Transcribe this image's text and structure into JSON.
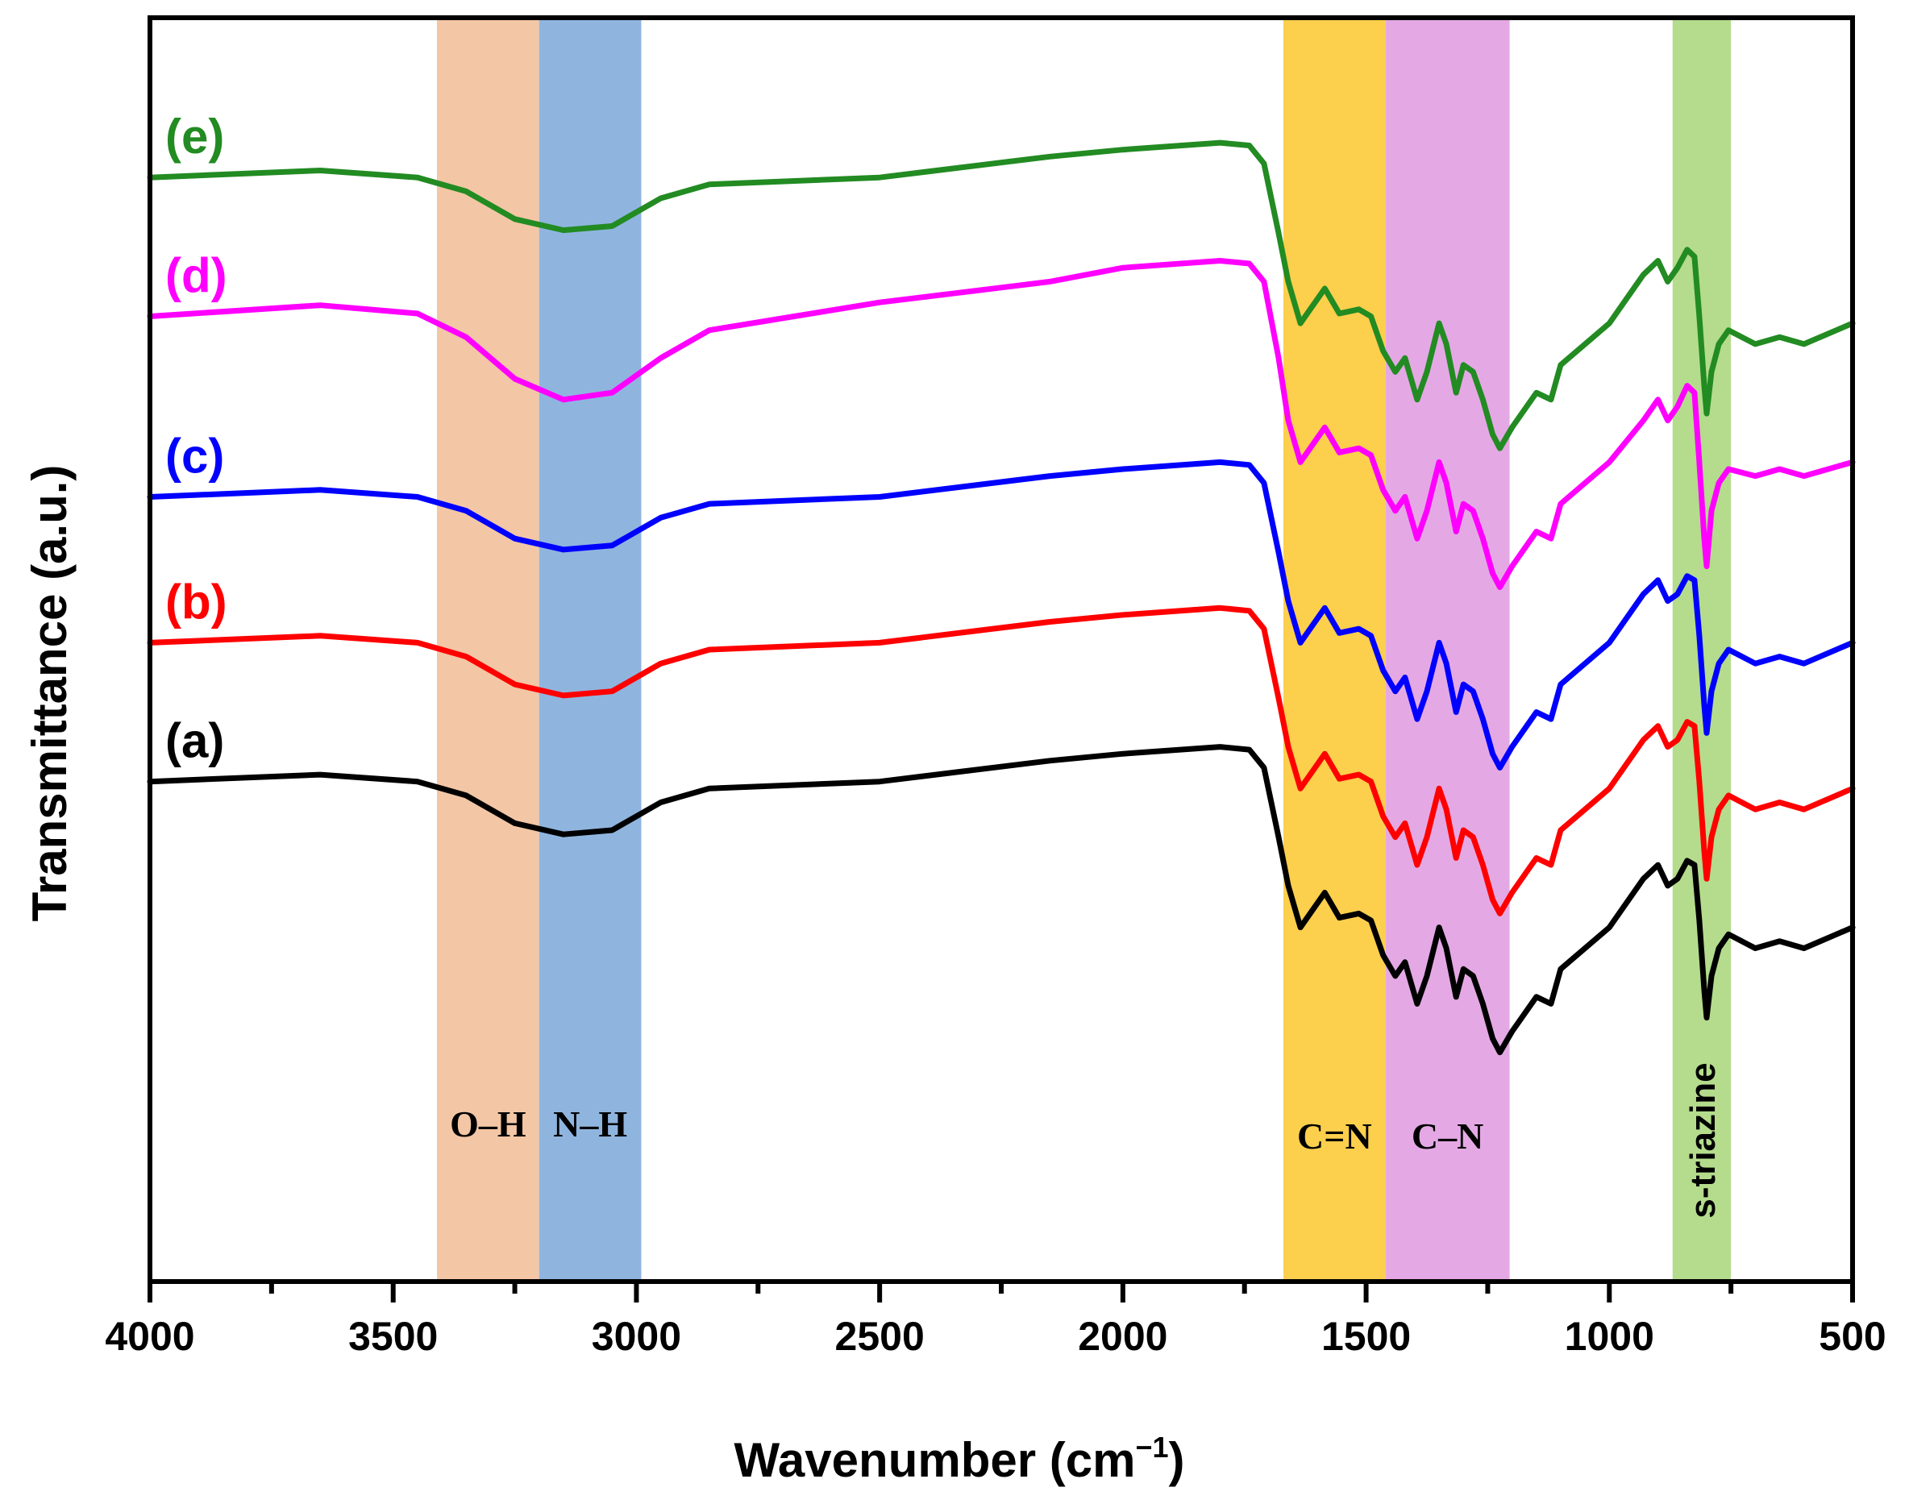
{
  "chart_data": {
    "type": "line",
    "xlabel": "Wavenumber (cm",
    "xlabel_sup": "−1",
    "xlabel_end": ")",
    "ylabel": "Transmittance (a.u.)",
    "xlim": [
      4000,
      500
    ],
    "x_reversed": true,
    "ylim": [
      0,
      9.1
    ],
    "x_ticks": [
      4000,
      3500,
      3000,
      2500,
      2000,
      1500,
      1000,
      500
    ],
    "x_tick_labels": [
      "4000",
      "3500",
      "3000",
      "2500",
      "2000",
      "1500",
      "1000",
      "500"
    ],
    "y_tick_labels_shown": false,
    "grid": false,
    "legend": "none",
    "bands": [
      {
        "label": "O–H",
        "range": [
          3410,
          3200
        ],
        "color": "#f3c6a5"
      },
      {
        "label": "N–H",
        "range": [
          3200,
          2990
        ],
        "color": "#8fb5df"
      },
      {
        "label": "C=N",
        "range": [
          1670,
          1460
        ],
        "color": "#fccf4d"
      },
      {
        "label": "C–N",
        "range": [
          1460,
          1205
        ],
        "color": "#e4a9e4"
      },
      {
        "label": "s-triazine",
        "range": [
          870,
          750
        ],
        "color": "#b4dc8c"
      }
    ],
    "series": [
      {
        "name": "(a)",
        "color": "#000000",
        "offset": 0.0,
        "points": [
          [
            4000,
            3.6
          ],
          [
            3650,
            3.65
          ],
          [
            3450,
            3.6
          ],
          [
            3350,
            3.5
          ],
          [
            3250,
            3.3
          ],
          [
            3150,
            3.22
          ],
          [
            3050,
            3.25
          ],
          [
            2950,
            3.45
          ],
          [
            2850,
            3.55
          ],
          [
            2500,
            3.6
          ],
          [
            2150,
            3.75
          ],
          [
            2000,
            3.8
          ],
          [
            1800,
            3.85
          ],
          [
            1740,
            3.83
          ],
          [
            1710,
            3.7
          ],
          [
            1680,
            3.2
          ],
          [
            1660,
            2.85
          ],
          [
            1635,
            2.55
          ],
          [
            1605,
            2.7
          ],
          [
            1585,
            2.8
          ],
          [
            1555,
            2.62
          ],
          [
            1515,
            2.65
          ],
          [
            1490,
            2.6
          ],
          [
            1465,
            2.35
          ],
          [
            1440,
            2.2
          ],
          [
            1420,
            2.3
          ],
          [
            1395,
            2.0
          ],
          [
            1375,
            2.2
          ],
          [
            1350,
            2.55
          ],
          [
            1335,
            2.4
          ],
          [
            1315,
            2.05
          ],
          [
            1300,
            2.25
          ],
          [
            1280,
            2.2
          ],
          [
            1260,
            2.0
          ],
          [
            1240,
            1.75
          ],
          [
            1225,
            1.65
          ],
          [
            1200,
            1.8
          ],
          [
            1150,
            2.05
          ],
          [
            1120,
            2.0
          ],
          [
            1100,
            2.25
          ],
          [
            1000,
            2.55
          ],
          [
            930,
            2.9
          ],
          [
            900,
            3.0
          ],
          [
            880,
            2.85
          ],
          [
            860,
            2.9
          ],
          [
            840,
            3.03
          ],
          [
            825,
            3.0
          ],
          [
            815,
            2.6
          ],
          [
            805,
            2.1
          ],
          [
            800,
            1.9
          ],
          [
            790,
            2.2
          ],
          [
            775,
            2.4
          ],
          [
            755,
            2.5
          ],
          [
            700,
            2.4
          ],
          [
            650,
            2.45
          ],
          [
            600,
            2.4
          ],
          [
            500,
            2.55
          ]
        ]
      },
      {
        "name": "(b)",
        "color": "#ff0000",
        "offset": 1.0,
        "points": [
          [
            4000,
            3.6
          ],
          [
            3650,
            3.65
          ],
          [
            3450,
            3.6
          ],
          [
            3350,
            3.5
          ],
          [
            3250,
            3.3
          ],
          [
            3150,
            3.22
          ],
          [
            3050,
            3.25
          ],
          [
            2950,
            3.45
          ],
          [
            2850,
            3.55
          ],
          [
            2500,
            3.6
          ],
          [
            2150,
            3.75
          ],
          [
            2000,
            3.8
          ],
          [
            1800,
            3.85
          ],
          [
            1740,
            3.83
          ],
          [
            1710,
            3.7
          ],
          [
            1680,
            3.2
          ],
          [
            1660,
            2.85
          ],
          [
            1635,
            2.55
          ],
          [
            1605,
            2.7
          ],
          [
            1585,
            2.8
          ],
          [
            1555,
            2.62
          ],
          [
            1515,
            2.65
          ],
          [
            1490,
            2.6
          ],
          [
            1465,
            2.35
          ],
          [
            1440,
            2.2
          ],
          [
            1420,
            2.3
          ],
          [
            1395,
            2.0
          ],
          [
            1375,
            2.2
          ],
          [
            1350,
            2.55
          ],
          [
            1335,
            2.4
          ],
          [
            1315,
            2.05
          ],
          [
            1300,
            2.25
          ],
          [
            1280,
            2.2
          ],
          [
            1260,
            2.0
          ],
          [
            1240,
            1.75
          ],
          [
            1225,
            1.65
          ],
          [
            1200,
            1.8
          ],
          [
            1150,
            2.05
          ],
          [
            1120,
            2.0
          ],
          [
            1100,
            2.25
          ],
          [
            1000,
            2.55
          ],
          [
            930,
            2.9
          ],
          [
            900,
            3.0
          ],
          [
            880,
            2.85
          ],
          [
            860,
            2.9
          ],
          [
            840,
            3.03
          ],
          [
            825,
            3.0
          ],
          [
            815,
            2.6
          ],
          [
            805,
            2.1
          ],
          [
            800,
            1.9
          ],
          [
            790,
            2.2
          ],
          [
            775,
            2.4
          ],
          [
            755,
            2.5
          ],
          [
            700,
            2.4
          ],
          [
            650,
            2.45
          ],
          [
            600,
            2.4
          ],
          [
            500,
            2.55
          ]
        ]
      },
      {
        "name": "(c)",
        "color": "#0000ff",
        "offset": 2.05,
        "points": [
          [
            4000,
            3.6
          ],
          [
            3650,
            3.65
          ],
          [
            3450,
            3.6
          ],
          [
            3350,
            3.5
          ],
          [
            3250,
            3.3
          ],
          [
            3150,
            3.22
          ],
          [
            3050,
            3.25
          ],
          [
            2950,
            3.45
          ],
          [
            2850,
            3.55
          ],
          [
            2500,
            3.6
          ],
          [
            2150,
            3.75
          ],
          [
            2000,
            3.8
          ],
          [
            1800,
            3.85
          ],
          [
            1740,
            3.83
          ],
          [
            1710,
            3.7
          ],
          [
            1680,
            3.2
          ],
          [
            1660,
            2.85
          ],
          [
            1635,
            2.55
          ],
          [
            1605,
            2.7
          ],
          [
            1585,
            2.8
          ],
          [
            1555,
            2.62
          ],
          [
            1515,
            2.65
          ],
          [
            1490,
            2.6
          ],
          [
            1465,
            2.35
          ],
          [
            1440,
            2.2
          ],
          [
            1420,
            2.3
          ],
          [
            1395,
            2.0
          ],
          [
            1375,
            2.2
          ],
          [
            1350,
            2.55
          ],
          [
            1335,
            2.4
          ],
          [
            1315,
            2.05
          ],
          [
            1300,
            2.25
          ],
          [
            1280,
            2.2
          ],
          [
            1260,
            2.0
          ],
          [
            1240,
            1.75
          ],
          [
            1225,
            1.65
          ],
          [
            1200,
            1.8
          ],
          [
            1150,
            2.05
          ],
          [
            1120,
            2.0
          ],
          [
            1100,
            2.25
          ],
          [
            1000,
            2.55
          ],
          [
            930,
            2.9
          ],
          [
            900,
            3.0
          ],
          [
            880,
            2.85
          ],
          [
            860,
            2.9
          ],
          [
            840,
            3.03
          ],
          [
            825,
            3.0
          ],
          [
            815,
            2.6
          ],
          [
            805,
            2.1
          ],
          [
            800,
            1.9
          ],
          [
            790,
            2.2
          ],
          [
            775,
            2.4
          ],
          [
            755,
            2.5
          ],
          [
            700,
            2.4
          ],
          [
            650,
            2.45
          ],
          [
            600,
            2.4
          ],
          [
            500,
            2.55
          ]
        ]
      },
      {
        "name": "(d)",
        "color": "#ff00ff",
        "offset": 3.35,
        "points": [
          [
            4000,
            3.6
          ],
          [
            3650,
            3.68
          ],
          [
            3450,
            3.62
          ],
          [
            3350,
            3.45
          ],
          [
            3250,
            3.15
          ],
          [
            3150,
            3.0
          ],
          [
            3050,
            3.05
          ],
          [
            2950,
            3.3
          ],
          [
            2850,
            3.5
          ],
          [
            2500,
            3.7
          ],
          [
            2150,
            3.85
          ],
          [
            2000,
            3.95
          ],
          [
            1800,
            4.0
          ],
          [
            1740,
            3.98
          ],
          [
            1710,
            3.85
          ],
          [
            1680,
            3.3
          ],
          [
            1660,
            2.85
          ],
          [
            1635,
            2.55
          ],
          [
            1605,
            2.7
          ],
          [
            1585,
            2.8
          ],
          [
            1555,
            2.62
          ],
          [
            1515,
            2.65
          ],
          [
            1490,
            2.6
          ],
          [
            1465,
            2.35
          ],
          [
            1440,
            2.2
          ],
          [
            1420,
            2.3
          ],
          [
            1395,
            2.0
          ],
          [
            1375,
            2.2
          ],
          [
            1350,
            2.55
          ],
          [
            1335,
            2.4
          ],
          [
            1315,
            2.05
          ],
          [
            1300,
            2.25
          ],
          [
            1280,
            2.2
          ],
          [
            1260,
            2.0
          ],
          [
            1240,
            1.75
          ],
          [
            1225,
            1.65
          ],
          [
            1200,
            1.8
          ],
          [
            1150,
            2.05
          ],
          [
            1120,
            2.0
          ],
          [
            1100,
            2.25
          ],
          [
            1000,
            2.55
          ],
          [
            930,
            2.85
          ],
          [
            900,
            3.0
          ],
          [
            880,
            2.85
          ],
          [
            860,
            2.95
          ],
          [
            840,
            3.1
          ],
          [
            825,
            3.05
          ],
          [
            815,
            2.55
          ],
          [
            805,
            2.0
          ],
          [
            800,
            1.8
          ],
          [
            790,
            2.2
          ],
          [
            775,
            2.4
          ],
          [
            755,
            2.5
          ],
          [
            700,
            2.45
          ],
          [
            650,
            2.5
          ],
          [
            600,
            2.45
          ],
          [
            500,
            2.55
          ]
        ]
      },
      {
        "name": "(e)",
        "color": "#228b22",
        "offset": 4.35,
        "points": [
          [
            4000,
            3.6
          ],
          [
            3650,
            3.65
          ],
          [
            3450,
            3.6
          ],
          [
            3350,
            3.5
          ],
          [
            3250,
            3.3
          ],
          [
            3150,
            3.22
          ],
          [
            3050,
            3.25
          ],
          [
            2950,
            3.45
          ],
          [
            2850,
            3.55
          ],
          [
            2500,
            3.6
          ],
          [
            2150,
            3.75
          ],
          [
            2000,
            3.8
          ],
          [
            1800,
            3.85
          ],
          [
            1740,
            3.83
          ],
          [
            1710,
            3.7
          ],
          [
            1680,
            3.2
          ],
          [
            1660,
            2.85
          ],
          [
            1635,
            2.55
          ],
          [
            1605,
            2.7
          ],
          [
            1585,
            2.8
          ],
          [
            1555,
            2.62
          ],
          [
            1515,
            2.65
          ],
          [
            1490,
            2.6
          ],
          [
            1465,
            2.35
          ],
          [
            1440,
            2.2
          ],
          [
            1420,
            2.3
          ],
          [
            1395,
            2.0
          ],
          [
            1375,
            2.2
          ],
          [
            1350,
            2.55
          ],
          [
            1335,
            2.4
          ],
          [
            1315,
            2.05
          ],
          [
            1300,
            2.25
          ],
          [
            1280,
            2.2
          ],
          [
            1260,
            2.0
          ],
          [
            1240,
            1.75
          ],
          [
            1225,
            1.65
          ],
          [
            1200,
            1.8
          ],
          [
            1150,
            2.05
          ],
          [
            1120,
            2.0
          ],
          [
            1100,
            2.25
          ],
          [
            1000,
            2.55
          ],
          [
            930,
            2.9
          ],
          [
            900,
            3.0
          ],
          [
            880,
            2.85
          ],
          [
            860,
            2.95
          ],
          [
            840,
            3.08
          ],
          [
            825,
            3.03
          ],
          [
            815,
            2.6
          ],
          [
            805,
            2.1
          ],
          [
            800,
            1.9
          ],
          [
            790,
            2.2
          ],
          [
            775,
            2.4
          ],
          [
            755,
            2.5
          ],
          [
            700,
            2.4
          ],
          [
            650,
            2.45
          ],
          [
            600,
            2.4
          ],
          [
            500,
            2.55
          ]
        ]
      }
    ]
  }
}
